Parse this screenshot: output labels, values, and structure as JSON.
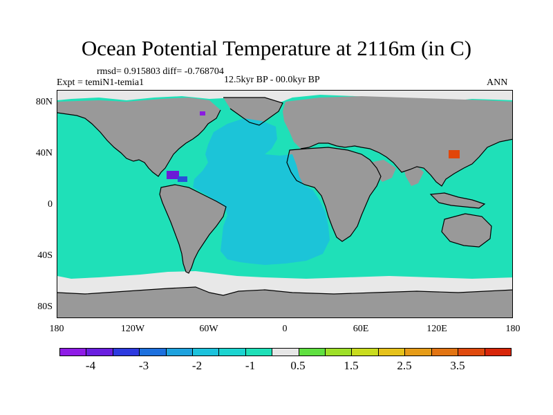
{
  "figure": {
    "title": "Ocean Potential Temperature at 2116m (in C)",
    "stats": "rmsd= 0.915803 diff= -0.768704",
    "experiment": "Expt = temiN1-temia1",
    "period": "12.5kyr BP - 00.0kyr BP",
    "season": "ANN"
  },
  "map": {
    "projection": "cylindrical equidistant",
    "lon_range": [
      -180,
      180
    ],
    "lat_range": [
      -90,
      90
    ],
    "y_tick_labels": [
      "80N",
      "40N",
      "0",
      "40S",
      "80S"
    ],
    "x_tick_labels": [
      "180",
      "120W",
      "60W",
      "0",
      "60E",
      "120E",
      "180"
    ],
    "colors": {
      "land": "#999999",
      "ocean_default": "#1fe0b8",
      "atlantic": "#1cc4d8",
      "polar": "#e8e8e8",
      "coast": "#000000"
    },
    "anomaly_patches": [
      {
        "region": "Gulf of Mexico",
        "level": "-4",
        "color": "#6b1bd6"
      },
      {
        "region": "Caribbean",
        "level": "-3",
        "color": "#2a4fd8"
      },
      {
        "region": "Arctic / Baffin",
        "level": "-4",
        "color": "#8a1be0"
      },
      {
        "region": "Sea of Japan",
        "level": "3.5",
        "color": "#e2460a"
      }
    ]
  },
  "colorbar": {
    "colors": [
      "#8f1ce6",
      "#6a1fe0",
      "#2d3ae0",
      "#1d70de",
      "#1ea2de",
      "#1cc2dc",
      "#1cd4d0",
      "#1fe0b8",
      "#e6e6e6",
      "#5fe040",
      "#9ee028",
      "#c9dc1e",
      "#e6c21b",
      "#e69c18",
      "#e27412",
      "#e04a0e",
      "#d8260a"
    ],
    "labels": [
      "-4",
      "-3",
      "-2",
      "-1",
      "0.5",
      "1.5",
      "2.5",
      "3.5"
    ]
  }
}
